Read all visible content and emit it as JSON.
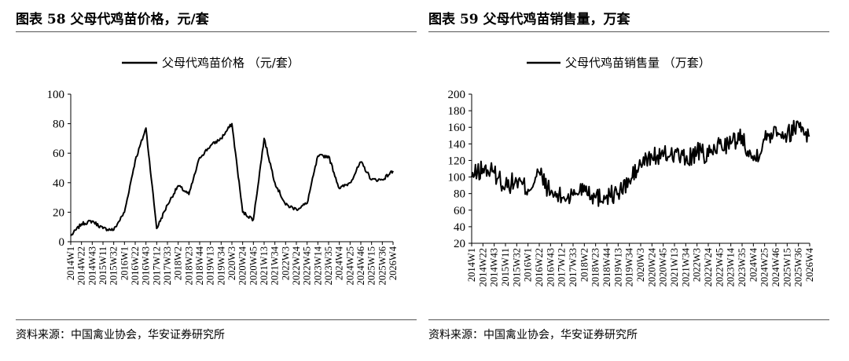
{
  "charts": [
    {
      "figure_title": "图表 58  父母代鸡苗价格，元/套",
      "source": "资料来源：中国禽业协会，华安证券研究所",
      "legend": "父母代鸡苗价格 （元/套）",
      "y_ticks": [
        "0",
        "20",
        "40",
        "60",
        "80",
        "100"
      ],
      "x_ticks": [
        "2014W1",
        "2014W22",
        "2014W43",
        "2015W11",
        "2015W32",
        "2016W1",
        "2016W22",
        "2016W43",
        "2017W12",
        "2017W33",
        "2018W2",
        "2018W23",
        "2018W44",
        "2019W13",
        "2019W34",
        "2020W3",
        "2020W24",
        "2020W45",
        "2021W13",
        "2021W34",
        "2022W3",
        "2022W24",
        "2022W45",
        "2023W14",
        "2023W35",
        "2024W4",
        "2024W25",
        "2024W46",
        "2025W15",
        "2025W36",
        "2026W4"
      ]
    },
    {
      "figure_title": "图表 59  父母代鸡苗销售量，万套",
      "source": "资料来源：中国禽业协会，华安证券研究所",
      "legend": "父母代鸡苗销售量 （万套）",
      "y_ticks": [
        "20",
        "40",
        "60",
        "80",
        "100",
        "120",
        "140",
        "160",
        "180",
        "200"
      ],
      "x_ticks": [
        "2014W1",
        "2014W22",
        "2014W43",
        "2015W11",
        "2015W32",
        "2016W1",
        "2016W22",
        "2016W43",
        "2017W12",
        "2017W33",
        "2018W2",
        "2018W23",
        "2018W44",
        "2019W13",
        "2019W34",
        "2020W3",
        "2020W24",
        "2020W45",
        "2021W13",
        "2021W34",
        "2022W3",
        "2022W24",
        "2022W45",
        "2023W14",
        "2023W35",
        "2024W4",
        "2024W25",
        "2024W46",
        "2025W15",
        "2025W36",
        "2026W4"
      ]
    }
  ],
  "chart_data": [
    {
      "type": "line",
      "ylim": [
        0,
        100
      ],
      "line_color": "#000000",
      "x": [
        "2014W1",
        "2014W22",
        "2014W43",
        "2015W11",
        "2015W32",
        "2016W1",
        "2016W22",
        "2016W43",
        "2017W12",
        "2017W33",
        "2018W2",
        "2018W23",
        "2018W44",
        "2019W13",
        "2019W34",
        "2020W3",
        "2020W24",
        "2020W45",
        "2021W13",
        "2021W34",
        "2022W3",
        "2022W24",
        "2022W45",
        "2023W14",
        "2023W35",
        "2024W4",
        "2024W25",
        "2024W46",
        "2025W15",
        "2025W36",
        "2026W4"
      ],
      "series": [
        {
          "name": "父母代鸡苗价格 （元/套）",
          "values": [
            4,
            12,
            14,
            9,
            8,
            20,
            55,
            77,
            9,
            25,
            38,
            32,
            57,
            65,
            70,
            80,
            20,
            15,
            70,
            40,
            25,
            22,
            26,
            58,
            58,
            36,
            40,
            54,
            42,
            42,
            48
          ]
        }
      ]
    },
    {
      "type": "line",
      "ylim": [
        20,
        200
      ],
      "line_color": "#000000",
      "x": [
        "2014W1",
        "2014W22",
        "2014W43",
        "2015W11",
        "2015W32",
        "2016W1",
        "2016W22",
        "2016W43",
        "2017W12",
        "2017W33",
        "2018W2",
        "2018W23",
        "2018W44",
        "2019W13",
        "2019W34",
        "2020W3",
        "2020W24",
        "2020W45",
        "2021W13",
        "2021W34",
        "2022W3",
        "2022W24",
        "2022W45",
        "2023W14",
        "2023W35",
        "2024W4",
        "2024W25",
        "2024W46",
        "2025W15",
        "2025W36",
        "2026W4"
      ],
      "series": [
        {
          "name": "父母代鸡苗销售量 （万套）",
          "values": [
            100,
            110,
            105,
            90,
            95,
            85,
            105,
            80,
            75,
            78,
            90,
            75,
            78,
            80,
            95,
            115,
            125,
            125,
            130,
            120,
            130,
            125,
            140,
            140,
            150,
            120,
            145,
            160,
            150,
            165,
            150
          ]
        }
      ]
    }
  ]
}
